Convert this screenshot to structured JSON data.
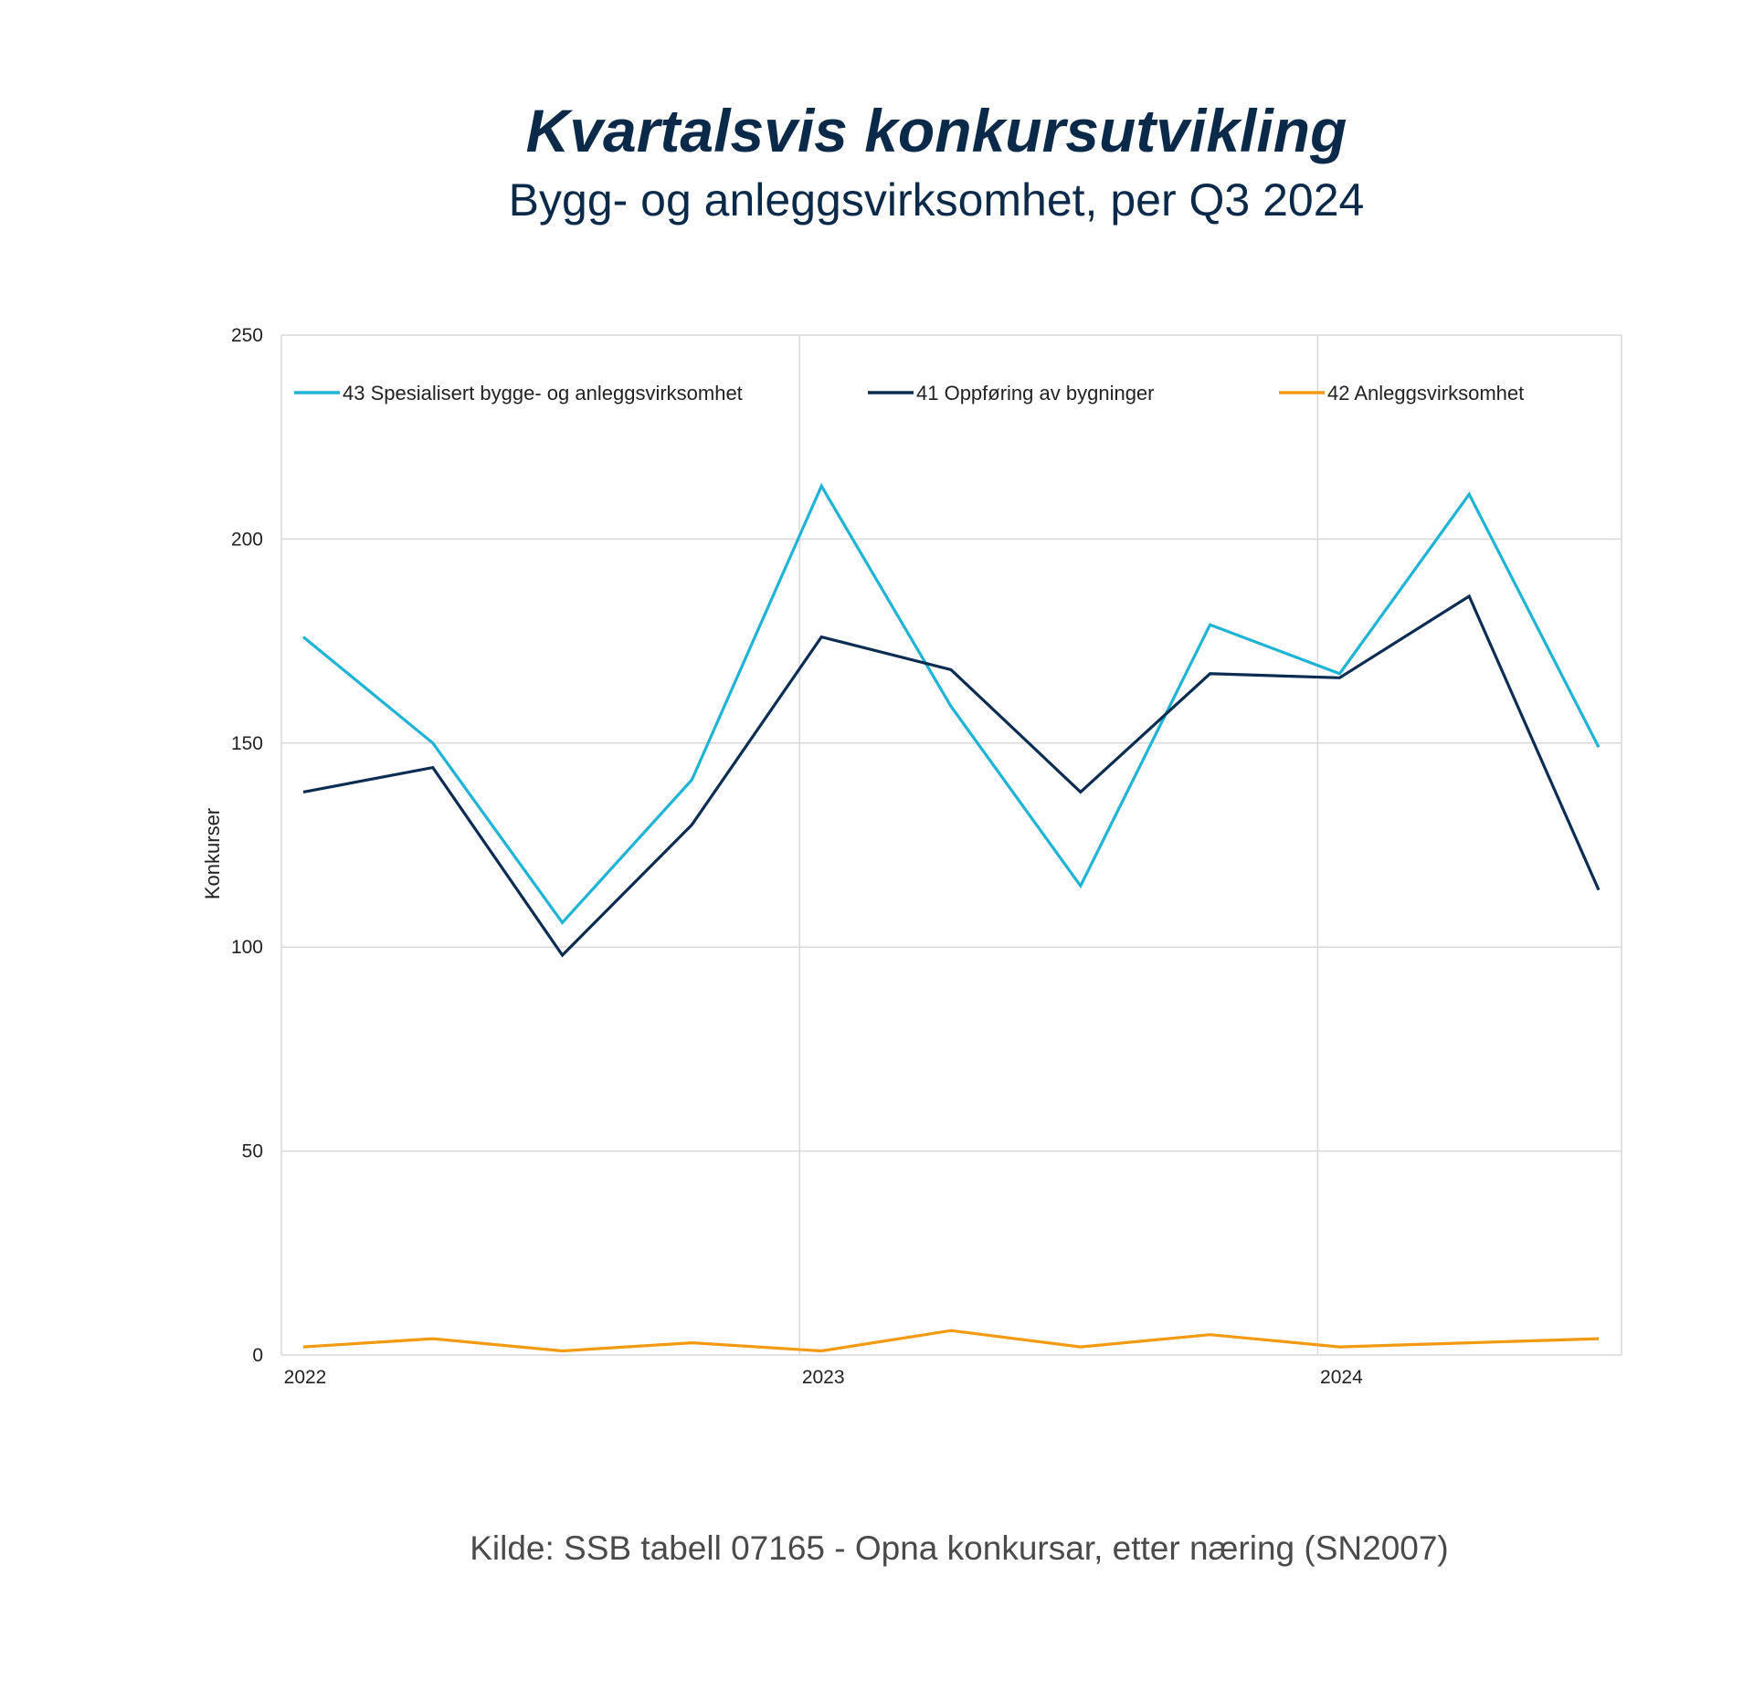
{
  "chart_data": {
    "type": "line",
    "title": "Kvartalsvis konkursutvikling",
    "subtitle": "Bygg- og anleggsvirksomhet, per Q3 2024",
    "ylabel": "Konkurser",
    "xlabel": "",
    "ylim": [
      0,
      250
    ],
    "yticks": [
      0,
      50,
      100,
      150,
      200,
      250
    ],
    "x": [
      "2022K1",
      "2022K2",
      "2022K3",
      "2022K4",
      "2023K1",
      "2023K2",
      "2023K3",
      "2023K4",
      "2024K1",
      "2024K2",
      "2024K3"
    ],
    "xtick_labels": [
      {
        "label": "2022",
        "index": 0
      },
      {
        "label": "2023",
        "index": 4
      },
      {
        "label": "2024",
        "index": 8
      }
    ],
    "series": [
      {
        "name": "43 Spesialisert bygge- og anleggsvirksomhet",
        "color": "#1fb3d6",
        "values": [
          176,
          150,
          106,
          141,
          213,
          159,
          115,
          179,
          167,
          211,
          149
        ]
      },
      {
        "name": "41 Oppføring av bygninger",
        "color": "#0b2d52",
        "values": [
          138,
          144,
          98,
          130,
          176,
          168,
          138,
          167,
          166,
          186,
          114
        ]
      },
      {
        "name": "42 Anleggsvirksomhet",
        "color": "#f29a12",
        "values": [
          2,
          4,
          1,
          3,
          1,
          6,
          2,
          5,
          2,
          3,
          4
        ]
      }
    ],
    "grid": true,
    "legend_position": "top"
  },
  "source": "Kilde: SSB tabell 07165 - Opna konkursar, etter næring (SN2007)"
}
